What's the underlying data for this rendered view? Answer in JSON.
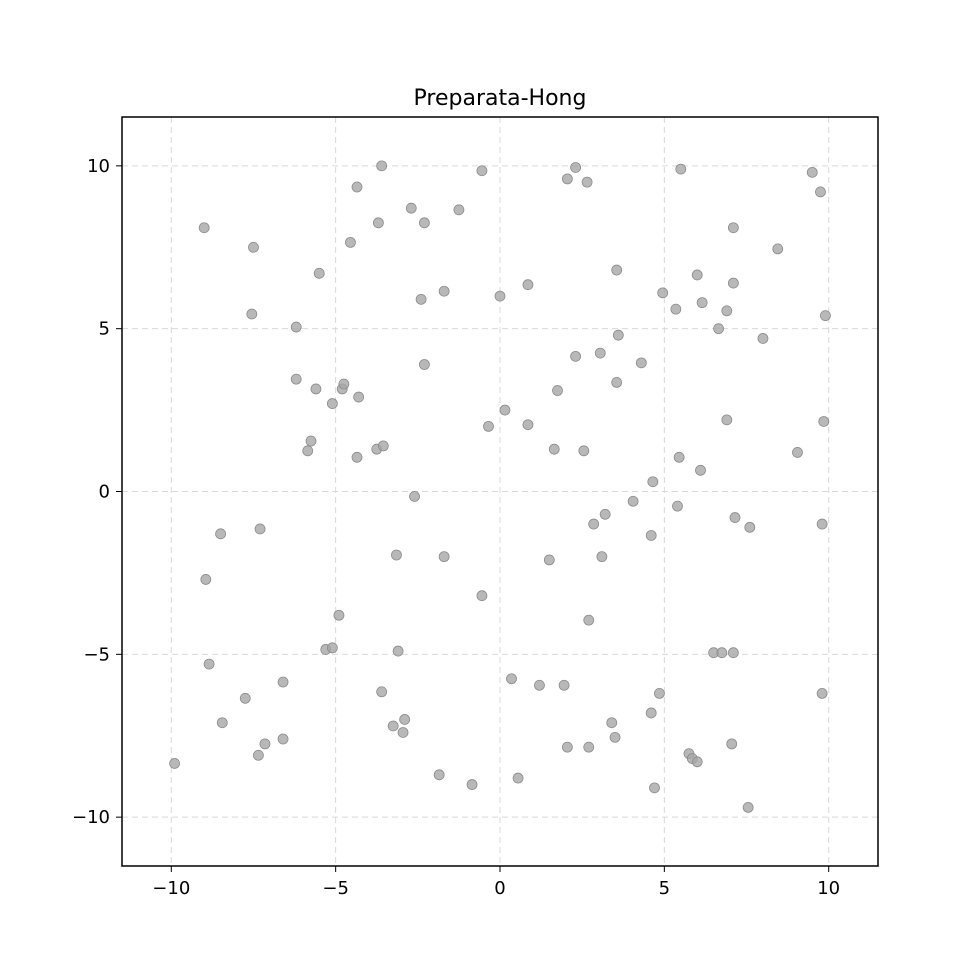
{
  "chart_data": {
    "type": "scatter",
    "title": "Preparata-Hong",
    "xlabel": "",
    "ylabel": "",
    "xlim": [
      -11.5,
      11.5
    ],
    "ylim": [
      -11.5,
      11.5
    ],
    "xticks": [
      -10,
      -5,
      0,
      5,
      10
    ],
    "yticks": [
      -10,
      -5,
      0,
      5,
      10
    ],
    "xtick_labels": [
      "−10",
      "−5",
      "0",
      "5",
      "10"
    ],
    "ytick_labels": [
      "−10",
      "−5",
      "0",
      "5",
      "10"
    ],
    "grid": true,
    "legend": null,
    "colors": {
      "point": "#a6a6a6",
      "grid": "#d9d9d9",
      "axes": "#000000"
    },
    "points": [
      [
        -9.0,
        8.1
      ],
      [
        -7.5,
        7.5
      ],
      [
        -7.55,
        5.45
      ],
      [
        -5.5,
        6.7
      ],
      [
        -6.2,
        5.05
      ],
      [
        -4.35,
        9.35
      ],
      [
        -3.6,
        10.0
      ],
      [
        -4.55,
        7.65
      ],
      [
        -3.7,
        8.25
      ],
      [
        -2.7,
        8.7
      ],
      [
        -2.3,
        8.25
      ],
      [
        -1.25,
        8.65
      ],
      [
        -0.55,
        9.85
      ],
      [
        -2.4,
        5.9
      ],
      [
        -1.7,
        6.15
      ],
      [
        -6.2,
        3.45
      ],
      [
        -5.6,
        3.15
      ],
      [
        -4.8,
        3.15
      ],
      [
        -4.75,
        3.3
      ],
      [
        -4.3,
        2.9
      ],
      [
        -5.1,
        2.7
      ],
      [
        -2.3,
        3.9
      ],
      [
        -5.75,
        1.55
      ],
      [
        -5.85,
        1.25
      ],
      [
        -3.75,
        1.3
      ],
      [
        -3.55,
        1.4
      ],
      [
        -4.35,
        1.05
      ],
      [
        -2.6,
        -0.15
      ],
      [
        -8.5,
        -1.3
      ],
      [
        -7.3,
        -1.15
      ],
      [
        -8.95,
        -2.7
      ],
      [
        -3.15,
        -1.95
      ],
      [
        -1.7,
        -2.0
      ],
      [
        -0.55,
        -3.2
      ],
      [
        -4.9,
        -3.8
      ],
      [
        -5.3,
        -4.85
      ],
      [
        -5.1,
        -4.8
      ],
      [
        -3.1,
        -4.9
      ],
      [
        -8.85,
        -5.3
      ],
      [
        -6.6,
        -5.85
      ],
      [
        -7.75,
        -6.35
      ],
      [
        -3.6,
        -6.15
      ],
      [
        -8.45,
        -7.1
      ],
      [
        -7.15,
        -7.75
      ],
      [
        -6.6,
        -7.6
      ],
      [
        -7.35,
        -8.1
      ],
      [
        -3.25,
        -7.2
      ],
      [
        -2.9,
        -7.0
      ],
      [
        -2.95,
        -7.4
      ],
      [
        -9.9,
        -8.35
      ],
      [
        -1.85,
        -8.7
      ],
      [
        -0.85,
        -9.0
      ],
      [
        0.55,
        -8.8
      ],
      [
        0.35,
        -5.75
      ],
      [
        1.2,
        -5.95
      ],
      [
        1.95,
        -5.95
      ],
      [
        2.05,
        -7.85
      ],
      [
        2.7,
        -7.85
      ],
      [
        3.4,
        -7.1
      ],
      [
        3.5,
        -7.55
      ],
      [
        4.6,
        -6.8
      ],
      [
        4.85,
        -6.2
      ],
      [
        4.7,
        -9.1
      ],
      [
        5.75,
        -8.05
      ],
      [
        5.85,
        -8.2
      ],
      [
        6.0,
        -8.3
      ],
      [
        7.05,
        -7.75
      ],
      [
        7.55,
        -9.7
      ],
      [
        9.8,
        -6.2
      ],
      [
        6.5,
        -4.95
      ],
      [
        6.75,
        -4.95
      ],
      [
        7.1,
        -4.95
      ],
      [
        2.7,
        -3.95
      ],
      [
        1.5,
        -2.1
      ],
      [
        3.1,
        -2.0
      ],
      [
        2.85,
        -1.0
      ],
      [
        3.2,
        -0.7
      ],
      [
        4.05,
        -0.3
      ],
      [
        4.6,
        -1.35
      ],
      [
        4.65,
        0.3
      ],
      [
        5.4,
        -0.45
      ],
      [
        5.45,
        1.05
      ],
      [
        6.1,
        0.65
      ],
      [
        7.15,
        -0.8
      ],
      [
        7.6,
        -1.1
      ],
      [
        9.8,
        -1.0
      ],
      [
        9.05,
        1.2
      ],
      [
        9.85,
        2.15
      ],
      [
        6.9,
        2.2
      ],
      [
        2.55,
        1.25
      ],
      [
        1.65,
        1.3
      ],
      [
        0.85,
        2.05
      ],
      [
        0.15,
        2.5
      ],
      [
        -0.35,
        2.0
      ],
      [
        1.75,
        3.1
      ],
      [
        3.55,
        3.35
      ],
      [
        2.3,
        4.15
      ],
      [
        3.05,
        4.25
      ],
      [
        3.6,
        4.8
      ],
      [
        4.3,
        3.95
      ],
      [
        5.35,
        5.6
      ],
      [
        4.95,
        6.1
      ],
      [
        6.15,
        5.8
      ],
      [
        6.65,
        5.0
      ],
      [
        6.9,
        5.55
      ],
      [
        7.1,
        6.4
      ],
      [
        6.0,
        6.65
      ],
      [
        3.55,
        6.8
      ],
      [
        0.85,
        6.35
      ],
      [
        0.0,
        6.0
      ],
      [
        8.0,
        4.7
      ],
      [
        9.9,
        5.4
      ],
      [
        7.1,
        8.1
      ],
      [
        8.45,
        7.45
      ],
      [
        2.05,
        9.6
      ],
      [
        2.3,
        9.95
      ],
      [
        2.65,
        9.5
      ],
      [
        5.5,
        9.9
      ],
      [
        9.5,
        9.8
      ],
      [
        9.75,
        9.2
      ]
    ]
  }
}
